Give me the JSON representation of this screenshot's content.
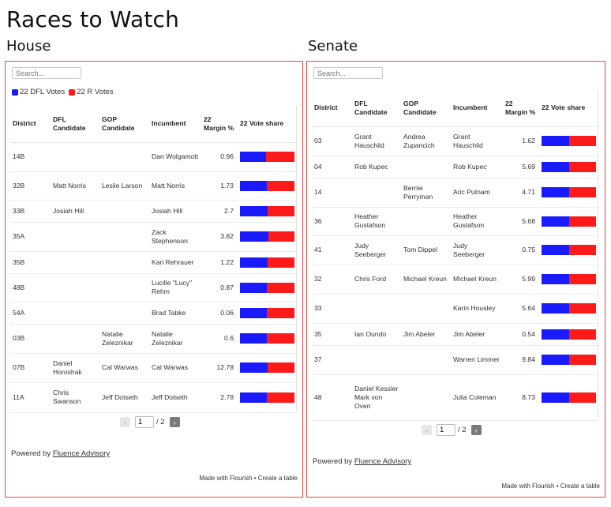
{
  "page_title": "Races to Watch",
  "house": {
    "title": "House",
    "search_placeholder": "Search...",
    "legend": [
      {
        "label": "22 DFL Votes",
        "color": "#1a1aff"
      },
      {
        "label": "22 R Votes",
        "color": "#ff1a1a"
      }
    ],
    "headers": {
      "district": "District",
      "dfl": "DFL Candidate",
      "gop": "GOP Candidate",
      "incumbent": "Incumbent",
      "margin": "22 Margin %",
      "share": "22 Vote share"
    },
    "rows": [
      {
        "district": "14B",
        "dfl": "",
        "gop": "",
        "incumbent": "Dan Wolgamott",
        "margin": "0.96",
        "dfl_share": 0.48
      },
      {
        "district": "32B",
        "dfl": "Matt Norris",
        "gop": "Leslie Larson",
        "incumbent": "Matt Norris",
        "margin": "1.73",
        "dfl_share": 0.49
      },
      {
        "district": "33B",
        "dfl": "Josiah Hill",
        "gop": "",
        "incumbent": "Josiah Hill",
        "margin": "2.7",
        "dfl_share": 0.51
      },
      {
        "district": "35A",
        "dfl": "",
        "gop": "",
        "incumbent": "Zack Stephenson",
        "margin": "3.82",
        "dfl_share": 0.52
      },
      {
        "district": "35B",
        "dfl": "",
        "gop": "",
        "incumbent": "Kari Rehrauer",
        "margin": "1.22",
        "dfl_share": 0.5
      },
      {
        "district": "48B",
        "dfl": "",
        "gop": "",
        "incumbent": "Lucille \"Lucy\" Rehm",
        "margin": "0.87",
        "dfl_share": 0.49
      },
      {
        "district": "54A",
        "dfl": "",
        "gop": "",
        "incumbent": "Brad Tabke",
        "margin": "0.06",
        "dfl_share": 0.49
      },
      {
        "district": "03B",
        "dfl": "",
        "gop": "Natalie Zeleznikar",
        "incumbent": "Natalie Zeleznikar",
        "margin": "0.6",
        "dfl_share": 0.49
      },
      {
        "district": "07B",
        "dfl": "Daniel Horoshak",
        "gop": "Cal Warwas",
        "incumbent": "Cal Warwas",
        "margin": "12.78",
        "dfl_share": 0.5
      },
      {
        "district": "11A",
        "dfl": "Chris Swanson",
        "gop": "Jeff Dotseth",
        "incumbent": "Jeff Dotseth",
        "margin": "2.78",
        "dfl_share": 0.49
      }
    ],
    "pager": {
      "prev": "‹",
      "page": "1",
      "of": "/ 2",
      "next": "›"
    },
    "powered_prefix": "Powered by",
    "powered_link": "Fluence Advisory",
    "made_with": "Made with Flourish • Create a table"
  },
  "senate": {
    "title": "Senate",
    "search_placeholder": "Search...",
    "headers": {
      "district": "District",
      "dfl": "DFL Candidate",
      "gop": "GOP Candidate",
      "incumbent": "Incumbent",
      "margin": "22 Margin %",
      "share": "22 Vote share"
    },
    "rows": [
      {
        "district": "03",
        "dfl": "Grant Hauschild",
        "gop": "Andrea Zupancich",
        "incumbent": "Grant Hauschild",
        "margin": "1.62",
        "dfl_share": 0.5
      },
      {
        "district": "04",
        "dfl": "Rob Kupec",
        "gop": "",
        "incumbent": "Rob Kupec",
        "margin": "5.69",
        "dfl_share": 0.51
      },
      {
        "district": "14",
        "dfl": "",
        "gop": "Bernie Perryman",
        "incumbent": "Aric Putnam",
        "margin": "4.71",
        "dfl_share": 0.51
      },
      {
        "district": "36",
        "dfl": "Heather Gustafson",
        "gop": "",
        "incumbent": "Heather Gustafson",
        "margin": "5.68",
        "dfl_share": 0.51
      },
      {
        "district": "41",
        "dfl": "Judy Seeberger",
        "gop": "Tom Dippel",
        "incumbent": "Judy Seeberger",
        "margin": "0.75",
        "dfl_share": 0.51
      },
      {
        "district": "32",
        "dfl": "Chris Ford",
        "gop": "Michael Kreun",
        "incumbent": "Michael Kreun",
        "margin": "5.99",
        "dfl_share": 0.5
      },
      {
        "district": "33",
        "dfl": "",
        "gop": "",
        "incumbent": "Karin Housley",
        "margin": "5.64",
        "dfl_share": 0.51
      },
      {
        "district": "35",
        "dfl": "Ian Oundo",
        "gop": "Jim Abeler",
        "incumbent": "Jim Abeler",
        "margin": "0.54",
        "dfl_share": 0.51
      },
      {
        "district": "37",
        "dfl": "",
        "gop": "",
        "incumbent": "Warren Limmer",
        "margin": "9.84",
        "dfl_share": 0.51
      },
      {
        "district": "48",
        "dfl": "Daniel Kessler Mark von Oven",
        "gop": "",
        "incumbent": "Julia Coleman",
        "margin": "8.73",
        "dfl_share": 0.51
      }
    ],
    "pager": {
      "prev": "‹",
      "page": "1",
      "of": "/ 2",
      "next": "›"
    },
    "powered_prefix": "Powered by",
    "powered_link": "Fluence Advisory",
    "made_with": "Made with Flourish • Create a table"
  }
}
